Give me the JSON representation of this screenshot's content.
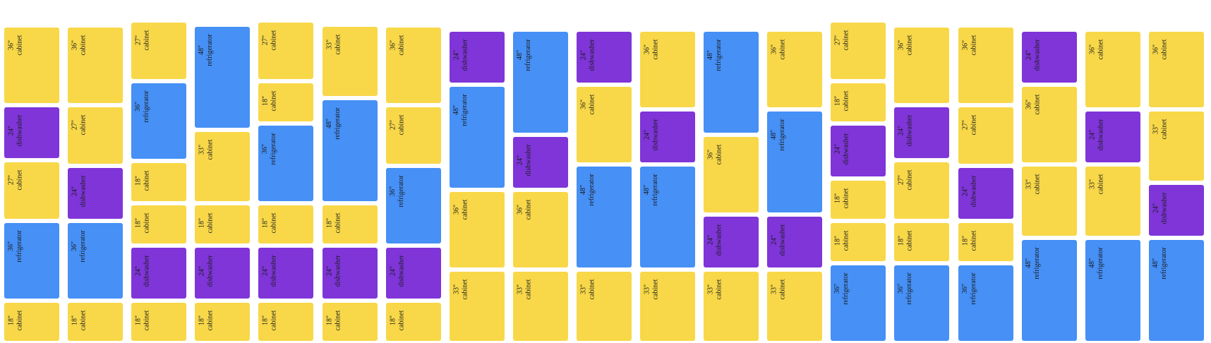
{
  "colors": {
    "cabinet": "#f8d849",
    "dishwasher": "#7f35d8",
    "refrigerator": "#4690f6"
  },
  "columns": [
    [
      {
        "size": "36\"",
        "kind": "cabinet"
      },
      {
        "size": "24\"",
        "kind": "dishwasher"
      },
      {
        "size": "27\"",
        "kind": "cabinet"
      },
      {
        "size": "36\"",
        "kind": "refrigerator"
      },
      {
        "size": "18\"",
        "kind": "cabinet"
      }
    ],
    [
      {
        "size": "36\"",
        "kind": "cabinet"
      },
      {
        "size": "27\"",
        "kind": "cabinet"
      },
      {
        "size": "24\"",
        "kind": "dishwasher"
      },
      {
        "size": "36\"",
        "kind": "refrigerator"
      },
      {
        "size": "18\"",
        "kind": "cabinet"
      }
    ],
    [
      {
        "size": "27\"",
        "kind": "cabinet"
      },
      {
        "size": "36\"",
        "kind": "refrigerator"
      },
      {
        "size": "18\"",
        "kind": "cabinet"
      },
      {
        "size": "18\"",
        "kind": "cabinet"
      },
      {
        "size": "24\"",
        "kind": "dishwasher"
      },
      {
        "size": "18\"",
        "kind": "cabinet"
      }
    ],
    [
      {
        "size": "48\"",
        "kind": "refrigerator"
      },
      {
        "size": "33\"",
        "kind": "cabinet"
      },
      {
        "size": "18\"",
        "kind": "cabinet"
      },
      {
        "size": "24\"",
        "kind": "dishwasher"
      },
      {
        "size": "18\"",
        "kind": "cabinet"
      }
    ],
    [
      {
        "size": "27\"",
        "kind": "cabinet"
      },
      {
        "size": "18\"",
        "kind": "cabinet"
      },
      {
        "size": "36\"",
        "kind": "refrigerator"
      },
      {
        "size": "18\"",
        "kind": "cabinet"
      },
      {
        "size": "24\"",
        "kind": "dishwasher"
      },
      {
        "size": "18\"",
        "kind": "cabinet"
      }
    ],
    [
      {
        "size": "33\"",
        "kind": "cabinet"
      },
      {
        "size": "48\"",
        "kind": "refrigerator"
      },
      {
        "size": "18\"",
        "kind": "cabinet"
      },
      {
        "size": "24\"",
        "kind": "dishwasher"
      },
      {
        "size": "18\"",
        "kind": "cabinet"
      }
    ],
    [
      {
        "size": "36\"",
        "kind": "cabinet"
      },
      {
        "size": "27\"",
        "kind": "cabinet"
      },
      {
        "size": "36\"",
        "kind": "refrigerator"
      },
      {
        "size": "24\"",
        "kind": "dishwasher"
      },
      {
        "size": "18\"",
        "kind": "cabinet"
      }
    ],
    [
      {
        "size": "24\"",
        "kind": "dishwasher"
      },
      {
        "size": "48\"",
        "kind": "refrigerator"
      },
      {
        "size": "36\"",
        "kind": "cabinet"
      },
      {
        "size": "33\"",
        "kind": "cabinet"
      }
    ],
    [
      {
        "size": "48\"",
        "kind": "refrigerator"
      },
      {
        "size": "24\"",
        "kind": "dishwasher"
      },
      {
        "size": "36\"",
        "kind": "cabinet"
      },
      {
        "size": "33\"",
        "kind": "cabinet"
      }
    ],
    [
      {
        "size": "24\"",
        "kind": "dishwasher"
      },
      {
        "size": "36\"",
        "kind": "cabinet"
      },
      {
        "size": "48\"",
        "kind": "refrigerator"
      },
      {
        "size": "33\"",
        "kind": "cabinet"
      }
    ],
    [
      {
        "size": "36\"",
        "kind": "cabinet"
      },
      {
        "size": "24\"",
        "kind": "dishwasher"
      },
      {
        "size": "48\"",
        "kind": "refrigerator"
      },
      {
        "size": "33\"",
        "kind": "cabinet"
      }
    ],
    [
      {
        "size": "48\"",
        "kind": "refrigerator"
      },
      {
        "size": "36\"",
        "kind": "cabinet"
      },
      {
        "size": "24\"",
        "kind": "dishwasher"
      },
      {
        "size": "33\"",
        "kind": "cabinet"
      }
    ],
    [
      {
        "size": "36\"",
        "kind": "cabinet"
      },
      {
        "size": "48\"",
        "kind": "refrigerator"
      },
      {
        "size": "24\"",
        "kind": "dishwasher"
      },
      {
        "size": "33\"",
        "kind": "cabinet"
      }
    ],
    [
      {
        "size": "27\"",
        "kind": "cabinet"
      },
      {
        "size": "18\"",
        "kind": "cabinet"
      },
      {
        "size": "24\"",
        "kind": "dishwasher"
      },
      {
        "size": "18\"",
        "kind": "cabinet"
      },
      {
        "size": "18\"",
        "kind": "cabinet"
      },
      {
        "size": "36\"",
        "kind": "refrigerator"
      }
    ],
    [
      {
        "size": "36\"",
        "kind": "cabinet"
      },
      {
        "size": "24\"",
        "kind": "dishwasher"
      },
      {
        "size": "27\"",
        "kind": "cabinet"
      },
      {
        "size": "18\"",
        "kind": "cabinet"
      },
      {
        "size": "36\"",
        "kind": "refrigerator"
      }
    ],
    [
      {
        "size": "36\"",
        "kind": "cabinet"
      },
      {
        "size": "27\"",
        "kind": "cabinet"
      },
      {
        "size": "24\"",
        "kind": "dishwasher"
      },
      {
        "size": "18\"",
        "kind": "cabinet"
      },
      {
        "size": "36\"",
        "kind": "refrigerator"
      }
    ],
    [
      {
        "size": "24\"",
        "kind": "dishwasher"
      },
      {
        "size": "36\"",
        "kind": "cabinet"
      },
      {
        "size": "33\"",
        "kind": "cabinet"
      },
      {
        "size": "48\"",
        "kind": "refrigerator"
      }
    ],
    [
      {
        "size": "36\"",
        "kind": "cabinet"
      },
      {
        "size": "24\"",
        "kind": "dishwasher"
      },
      {
        "size": "33\"",
        "kind": "cabinet"
      },
      {
        "size": "48\"",
        "kind": "refrigerator"
      }
    ],
    [
      {
        "size": "36\"",
        "kind": "cabinet"
      },
      {
        "size": "33\"",
        "kind": "cabinet"
      },
      {
        "size": "24\"",
        "kind": "dishwasher"
      },
      {
        "size": "48\"",
        "kind": "refrigerator"
      }
    ]
  ]
}
